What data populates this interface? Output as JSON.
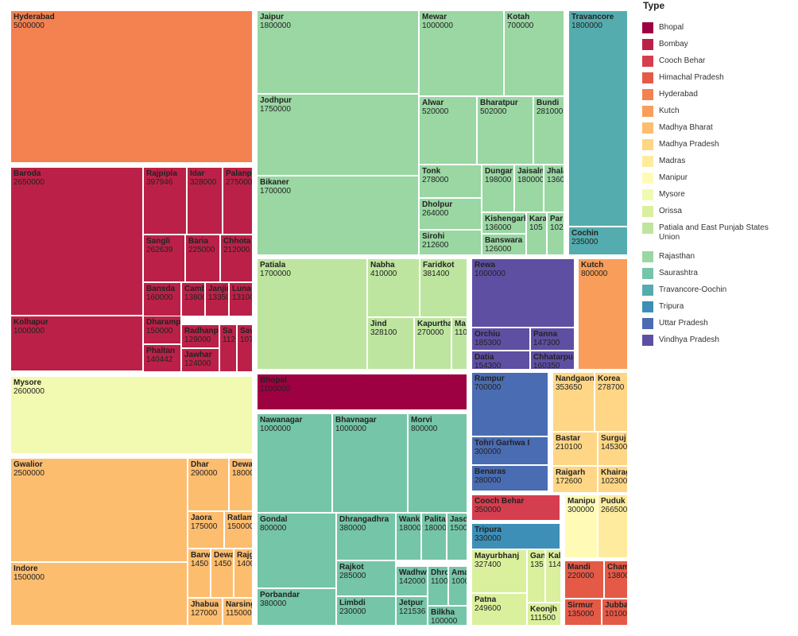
{
  "chart_data": {
    "type": "treemap",
    "legend": {
      "title": "Type",
      "position": "right",
      "entries": [
        {
          "name": "Bhopal",
          "color": "#9e0142"
        },
        {
          "name": "Bombay",
          "color": "#bb2148"
        },
        {
          "name": "Cooch Behar",
          "color": "#d53e4f"
        },
        {
          "name": "Himachal Pradesh",
          "color": "#e55a47"
        },
        {
          "name": "Hyderabad",
          "color": "#f48150"
        },
        {
          "name": "Kutch",
          "color": "#f89e5a"
        },
        {
          "name": "Madhya Bharat",
          "color": "#fdbd6f"
        },
        {
          "name": "Madhya Pradesh",
          "color": "#fed685"
        },
        {
          "name": "Madras",
          "color": "#feeb9e"
        },
        {
          "name": "Manipur",
          "color": "#fffbb6"
        },
        {
          "name": "Mysore",
          "color": "#f2f9b0"
        },
        {
          "name": "Orissa",
          "color": "#dbf09c"
        },
        {
          "name": "Patiala and East Punjab States Union",
          "color": "#bee59f"
        },
        {
          "name": "Rajasthan",
          "color": "#9ad7a3"
        },
        {
          "name": "Saurashtra",
          "color": "#75c5a8"
        },
        {
          "name": "Travancore-Oochin",
          "color": "#55acae"
        },
        {
          "name": "Tripura",
          "color": "#3d8fb7"
        },
        {
          "name": "Uttar Pradesh",
          "color": "#4a6cb3"
        },
        {
          "name": "Vindhya Pradesh",
          "color": "#5e4fa2"
        }
      ]
    },
    "groups": [
      {
        "type": "Hyderabad",
        "items": [
          {
            "name": "Hyderabad",
            "value": "5000000"
          }
        ]
      },
      {
        "type": "Bombay",
        "items": [
          {
            "name": "Baroda",
            "value": "2650000"
          },
          {
            "name": "Kolhapur",
            "value": "1000000"
          },
          {
            "name": "Rajpipla",
            "value": "397946"
          },
          {
            "name": "Idar",
            "value": "328000"
          },
          {
            "name": "Palanp",
            "value": "275000"
          },
          {
            "name": "Sangli",
            "value": "262639"
          },
          {
            "name": "Baria",
            "value": "225000"
          },
          {
            "name": "Chhota",
            "value": "212000"
          },
          {
            "name": "Bansda",
            "value": "160000"
          },
          {
            "name": "Camb",
            "value": "13800"
          },
          {
            "name": "Janjir",
            "value": "13350"
          },
          {
            "name": "Luna",
            "value": "13100"
          },
          {
            "name": "Dharamp",
            "value": "150000"
          },
          {
            "name": "Radhanp",
            "value": "129000"
          },
          {
            "name": "Sa",
            "value": "112"
          },
          {
            "name": "Sav",
            "value": "107"
          },
          {
            "name": "Phaltan",
            "value": "140442"
          },
          {
            "name": "Jawhar",
            "value": "124000"
          }
        ]
      },
      {
        "type": "Mysore",
        "items": [
          {
            "name": "Mysore",
            "value": "2600000"
          }
        ]
      },
      {
        "type": "Madhya Bharat",
        "items": [
          {
            "name": "Gwalior",
            "value": "2500000"
          },
          {
            "name": "Indore",
            "value": "1500000"
          },
          {
            "name": "Dhar",
            "value": "290000"
          },
          {
            "name": "Dewa",
            "value": "18000"
          },
          {
            "name": "Jaora",
            "value": "175000"
          },
          {
            "name": "Ratlam",
            "value": "150000"
          },
          {
            "name": "Barw",
            "value": "1450"
          },
          {
            "name": "Dewa",
            "value": "1450"
          },
          {
            "name": "Rajg",
            "value": "1400"
          },
          {
            "name": "Jhabua",
            "value": "127000"
          },
          {
            "name": "Narsing",
            "value": "115000"
          }
        ]
      },
      {
        "type": "Rajasthan",
        "items": [
          {
            "name": "Jaipur",
            "value": "1800000"
          },
          {
            "name": "Jodhpur",
            "value": "1750000"
          },
          {
            "name": "Bikaner",
            "value": "1700000"
          },
          {
            "name": "Mewar",
            "value": "1000000"
          },
          {
            "name": "Kotah",
            "value": "700000"
          },
          {
            "name": "Alwar",
            "value": "520000"
          },
          {
            "name": "Bharatpur",
            "value": "502000"
          },
          {
            "name": "Bundi",
            "value": "281000"
          },
          {
            "name": "Tonk",
            "value": "278000"
          },
          {
            "name": "Dungar",
            "value": "198000"
          },
          {
            "name": "Jaisalm",
            "value": "180000"
          },
          {
            "name": "Jhala",
            "value": "1360"
          },
          {
            "name": "Dholpur",
            "value": "264000"
          },
          {
            "name": "Kishengarh",
            "value": "136000"
          },
          {
            "name": "Kara",
            "value": "105"
          },
          {
            "name": "Par",
            "value": "102"
          },
          {
            "name": "Sirohi",
            "value": "212600"
          },
          {
            "name": "Banswara",
            "value": "126000"
          }
        ]
      },
      {
        "type": "Travancore-Oochin",
        "items": [
          {
            "name": "Travancore",
            "value": "1800000"
          },
          {
            "name": "Cochin",
            "value": "235000"
          }
        ]
      },
      {
        "type": "Patiala and East Punjab States Union",
        "items": [
          {
            "name": "Patiala",
            "value": "1700000"
          },
          {
            "name": "Nabha",
            "value": "410000"
          },
          {
            "name": "Faridkot",
            "value": "381400"
          },
          {
            "name": "Jind",
            "value": "328100"
          },
          {
            "name": "Kapurtha",
            "value": "270000"
          },
          {
            "name": "Ma",
            "value": "110"
          }
        ]
      },
      {
        "type": "Vindhya Pradesh",
        "items": [
          {
            "name": "Rewa",
            "value": "1000000"
          },
          {
            "name": "Orchiu",
            "value": "185300"
          },
          {
            "name": "Panna",
            "value": "147300"
          },
          {
            "name": "Datia",
            "value": "154300"
          },
          {
            "name": "Chhatarpu",
            "value": "160350"
          }
        ]
      },
      {
        "type": "Kutch",
        "items": [
          {
            "name": "Kutch",
            "value": "800000"
          }
        ]
      },
      {
        "type": "Bhopal",
        "items": [
          {
            "name": "Bhopal",
            "value": "1100000"
          }
        ]
      },
      {
        "type": "Saurashtra",
        "items": [
          {
            "name": "Nawanagar",
            "value": "1000000"
          },
          {
            "name": "Bhavnagar",
            "value": "1000000"
          },
          {
            "name": "Morvi",
            "value": "800000"
          },
          {
            "name": "Gondal",
            "value": "800000"
          },
          {
            "name": "Dhrangadhra",
            "value": "380000"
          },
          {
            "name": "Wank",
            "value": "18000"
          },
          {
            "name": "Palita",
            "value": "18000"
          },
          {
            "name": "Jasd",
            "value": "1500"
          },
          {
            "name": "Rajkot",
            "value": "285000"
          },
          {
            "name": "Wadhw",
            "value": "142000"
          },
          {
            "name": "Dhro",
            "value": "1100"
          },
          {
            "name": "Ama",
            "value": "1000"
          },
          {
            "name": "Porbandar",
            "value": "380000"
          },
          {
            "name": "Limbdi",
            "value": "230000"
          },
          {
            "name": "Jetpur",
            "value": "121536"
          },
          {
            "name": "Bilkha",
            "value": "100000"
          }
        ]
      },
      {
        "type": "Uttar Pradesh",
        "items": [
          {
            "name": "Rampur",
            "value": "700000"
          },
          {
            "name": "Tohri Garhwa I",
            "value": "300000"
          },
          {
            "name": "Benaras",
            "value": "280000"
          }
        ]
      },
      {
        "type": "Madhya Pradesh",
        "items": [
          {
            "name": "Nandgaon",
            "value": "353650"
          },
          {
            "name": "Korea",
            "value": "278700"
          },
          {
            "name": "Bastar",
            "value": "210100"
          },
          {
            "name": "Surguj",
            "value": "145300"
          },
          {
            "name": "Raigarh",
            "value": "172600"
          },
          {
            "name": "Khairag",
            "value": "102300"
          }
        ]
      },
      {
        "type": "Cooch Behar",
        "items": [
          {
            "name": "Cooch Behar",
            "value": "350000"
          }
        ]
      },
      {
        "type": "Tripura",
        "items": [
          {
            "name": "Tripura",
            "value": "330000"
          }
        ]
      },
      {
        "type": "Manipur",
        "items": [
          {
            "name": "Manipu",
            "value": "300000"
          }
        ]
      },
      {
        "type": "Madras",
        "items": [
          {
            "name": "Puduk",
            "value": "266500"
          }
        ]
      },
      {
        "type": "Orissa",
        "items": [
          {
            "name": "Mayurbhanj",
            "value": "327400"
          },
          {
            "name": "Gan",
            "value": "135"
          },
          {
            "name": "Kal",
            "value": "114"
          },
          {
            "name": "Patna",
            "value": "249600"
          },
          {
            "name": "Keonjh",
            "value": "111500"
          }
        ]
      },
      {
        "type": "Himachal Pradesh",
        "items": [
          {
            "name": "Mandi",
            "value": "220000"
          },
          {
            "name": "Cham",
            "value": "13800"
          },
          {
            "name": "Sirmur",
            "value": "135000"
          },
          {
            "name": "Jubba",
            "value": "101000"
          }
        ]
      }
    ]
  }
}
